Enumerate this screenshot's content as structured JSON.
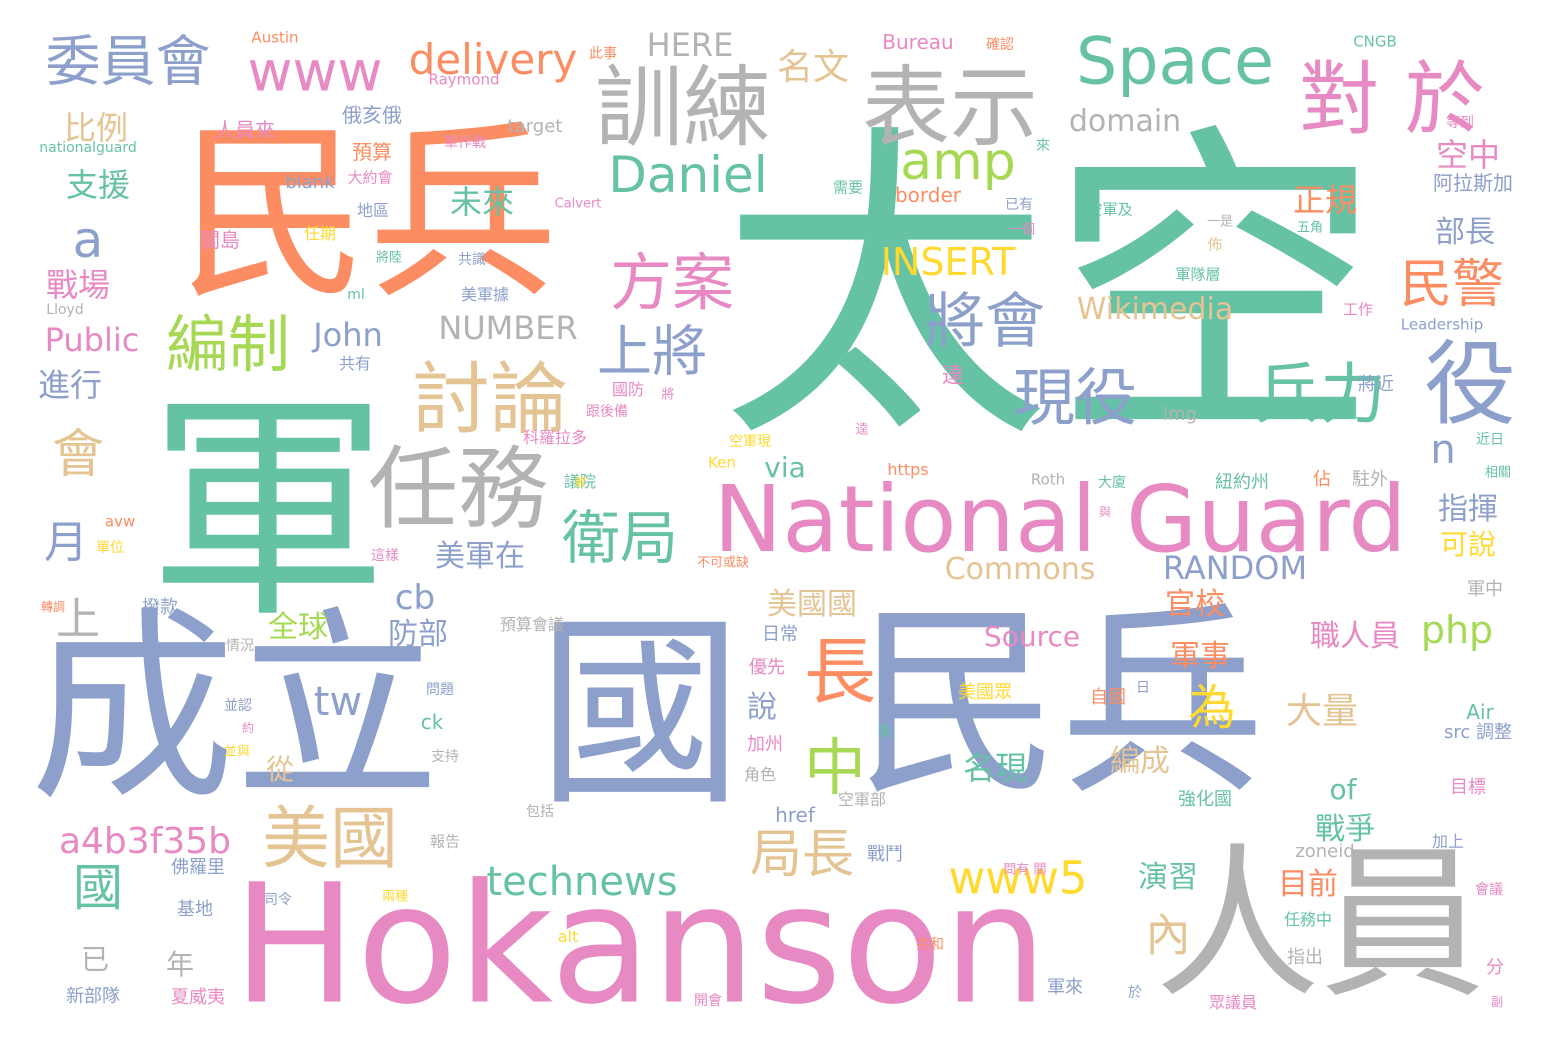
{
  "palette": {
    "teal": "#66c2a5",
    "orange": "#fc8d62",
    "blue": "#8da0cb",
    "pink": "#e78ac3",
    "green": "#a6d854",
    "yellow": "#ffd92f",
    "tan": "#e5c494",
    "gray": "#b3b3b3"
  },
  "words": [
    {
      "text": "太空",
      "color": "teal"
    },
    {
      "text": "民兵",
      "color": "orange"
    },
    {
      "text": "軍",
      "color": "teal"
    },
    {
      "text": "成立",
      "color": "blue"
    },
    {
      "text": "國",
      "color": "blue"
    },
    {
      "text": "民兵",
      "color": "blue"
    },
    {
      "text": "Hokanson",
      "color": "pink"
    },
    {
      "text": "人員",
      "color": "gray"
    },
    {
      "text": "National Guard",
      "color": "pink"
    },
    {
      "text": "訓練",
      "color": "gray"
    },
    {
      "text": "表示",
      "color": "gray"
    },
    {
      "text": "Space",
      "color": "teal"
    },
    {
      "text": "對 於",
      "color": "pink"
    },
    {
      "text": "委員會",
      "color": "blue"
    },
    {
      "text": "www",
      "color": "pink"
    },
    {
      "text": "delivery",
      "color": "orange"
    },
    {
      "text": "HERE",
      "color": "gray"
    },
    {
      "text": "名文",
      "color": "tan"
    },
    {
      "text": "domain",
      "color": "gray"
    },
    {
      "text": "amp",
      "color": "green"
    },
    {
      "text": "Daniel",
      "color": "teal"
    },
    {
      "text": "方案",
      "color": "pink"
    },
    {
      "text": "將會",
      "color": "blue"
    },
    {
      "text": "編制",
      "color": "green"
    },
    {
      "text": "討論",
      "color": "tan"
    },
    {
      "text": "上將",
      "color": "blue"
    },
    {
      "text": "現役",
      "color": "blue"
    },
    {
      "text": "兵力",
      "color": "teal"
    },
    {
      "text": "役",
      "color": "blue"
    },
    {
      "text": "民警",
      "color": "orange"
    },
    {
      "text": "任務",
      "color": "gray"
    },
    {
      "text": "衛局",
      "color": "teal"
    },
    {
      "text": "會",
      "color": "tan"
    },
    {
      "text": "a",
      "color": "blue"
    },
    {
      "text": "長",
      "color": "orange"
    },
    {
      "text": "中",
      "color": "green"
    },
    {
      "text": "為",
      "color": "yellow"
    },
    {
      "text": "INSERT",
      "color": "yellow"
    },
    {
      "text": "NUMBER",
      "color": "gray"
    },
    {
      "text": "John",
      "color": "blue"
    },
    {
      "text": "Public",
      "color": "pink"
    },
    {
      "text": "Wikimedia",
      "color": "tan"
    },
    {
      "text": "Commons",
      "color": "tan"
    },
    {
      "text": "RANDOM",
      "color": "blue"
    },
    {
      "text": "Source",
      "color": "pink"
    },
    {
      "text": "php",
      "color": "green"
    },
    {
      "text": "美國",
      "color": "tan"
    },
    {
      "text": "局長",
      "color": "tan"
    },
    {
      "text": "www5",
      "color": "yellow"
    },
    {
      "text": "technews",
      "color": "teal"
    },
    {
      "text": "a4b3f35b",
      "color": "pink"
    },
    {
      "text": "tw",
      "color": "blue"
    },
    {
      "text": "cb",
      "color": "blue"
    },
    {
      "text": "月",
      "color": "blue"
    },
    {
      "text": "上",
      "color": "gray"
    },
    {
      "text": "國",
      "color": "teal"
    },
    {
      "text": "內",
      "color": "tan"
    },
    {
      "text": "未來",
      "color": "teal"
    },
    {
      "text": "比例",
      "color": "tan"
    },
    {
      "text": "支援",
      "color": "teal"
    },
    {
      "text": "戰場",
      "color": "pink"
    },
    {
      "text": "進行",
      "color": "blue"
    },
    {
      "text": "全球",
      "color": "green"
    },
    {
      "text": "防部",
      "color": "blue"
    },
    {
      "text": "美國國",
      "color": "tan"
    },
    {
      "text": "名現",
      "color": "teal"
    },
    {
      "text": "編成",
      "color": "tan"
    },
    {
      "text": "演習",
      "color": "teal"
    },
    {
      "text": "戰爭",
      "color": "teal"
    },
    {
      "text": "目前",
      "color": "orange"
    },
    {
      "text": "大量",
      "color": "tan"
    },
    {
      "text": "官校",
      "color": "orange"
    },
    {
      "text": "軍事",
      "color": "orange"
    },
    {
      "text": "職人員",
      "color": "pink"
    },
    {
      "text": "指揮",
      "color": "blue"
    },
    {
      "text": "可說",
      "color": "yellow"
    },
    {
      "text": "n",
      "color": "blue"
    },
    {
      "text": "正規",
      "color": "orange"
    },
    {
      "text": "部長",
      "color": "blue"
    },
    {
      "text": "空中",
      "color": "pink"
    },
    {
      "text": "美軍在",
      "color": "blue"
    },
    {
      "text": "via",
      "color": "teal"
    },
    {
      "text": "說",
      "color": "blue"
    },
    {
      "text": "從",
      "color": "tan"
    },
    {
      "text": "年",
      "color": "gray"
    },
    {
      "text": "已",
      "color": "gray"
    },
    {
      "text": "of",
      "color": "teal"
    },
    {
      "text": "Bureau",
      "color": "pink"
    },
    {
      "text": "CNGB",
      "color": "teal"
    },
    {
      "text": "Austin",
      "color": "orange"
    },
    {
      "text": "Raymond",
      "color": "pink"
    },
    {
      "text": "target",
      "color": "gray"
    },
    {
      "text": "blank",
      "color": "blue"
    },
    {
      "text": "border",
      "color": "orange"
    },
    {
      "text": "img",
      "color": "gray"
    },
    {
      "text": "https",
      "color": "orange"
    },
    {
      "text": "Ken",
      "color": "yellow"
    },
    {
      "text": "Roth",
      "color": "gray"
    },
    {
      "text": "avw",
      "color": "orange"
    },
    {
      "text": "ck",
      "color": "teal"
    },
    {
      "text": "alt",
      "color": "yellow"
    },
    {
      "text": "href",
      "color": "blue"
    },
    {
      "text": "zoneid",
      "color": "gray"
    },
    {
      "text": "src 調整",
      "color": "blue"
    },
    {
      "text": "Air",
      "color": "teal"
    },
    {
      "text": "nationalguard",
      "color": "teal"
    },
    {
      "text": "Lloyd",
      "color": "gray"
    },
    {
      "text": "Leadership",
      "color": "blue"
    },
    {
      "text": "ml",
      "color": "teal"
    },
    {
      "text": "阿拉斯加",
      "color": "blue"
    },
    {
      "text": "人員來",
      "color": "pink"
    },
    {
      "text": "俄亥俄",
      "color": "blue"
    },
    {
      "text": "預算",
      "color": "orange"
    },
    {
      "text": "關島",
      "color": "pink"
    },
    {
      "text": "任期",
      "color": "yellow"
    },
    {
      "text": "地區",
      "color": "blue"
    },
    {
      "text": "美軍據",
      "color": "blue"
    },
    {
      "text": "國防",
      "color": "pink"
    },
    {
      "text": "科羅拉多",
      "color": "pink"
    },
    {
      "text": "議院",
      "color": "teal"
    },
    {
      "text": "紐約州",
      "color": "teal"
    },
    {
      "text": "大廈",
      "color": "teal"
    },
    {
      "text": "將近",
      "color": "blue"
    },
    {
      "text": "達",
      "color": "pink"
    },
    {
      "text": "撥款",
      "color": "blue"
    },
    {
      "text": "單位",
      "color": "yellow"
    },
    {
      "text": "轉調",
      "color": "orange"
    },
    {
      "text": "預算會議",
      "color": "gray"
    },
    {
      "text": "日常",
      "color": "blue"
    },
    {
      "text": "優先",
      "color": "pink"
    },
    {
      "text": "美國眾",
      "color": "yellow"
    },
    {
      "text": "自國",
      "color": "orange"
    },
    {
      "text": "加州",
      "color": "pink"
    },
    {
      "text": "角色",
      "color": "gray"
    },
    {
      "text": "強化國",
      "color": "teal"
    },
    {
      "text": "空軍部",
      "color": "gray"
    },
    {
      "text": "戰鬥",
      "color": "blue"
    },
    {
      "text": "佛羅里",
      "color": "blue"
    },
    {
      "text": "基地",
      "color": "blue"
    },
    {
      "text": "夏威夷",
      "color": "pink"
    },
    {
      "text": "新部隊",
      "color": "blue"
    },
    {
      "text": "軍來",
      "color": "blue"
    },
    {
      "text": "任務中",
      "color": "teal"
    },
    {
      "text": "指出",
      "color": "gray"
    },
    {
      "text": "眾議員",
      "color": "pink"
    },
    {
      "text": "目標",
      "color": "pink"
    },
    {
      "text": "加上",
      "color": "blue"
    },
    {
      "text": "分",
      "color": "pink"
    },
    {
      "text": "軍中",
      "color": "gray"
    },
    {
      "text": "近日",
      "color": "teal"
    },
    {
      "text": "駐外",
      "color": "gray"
    },
    {
      "text": "工作",
      "color": "pink"
    },
    {
      "text": "軍隊層",
      "color": "teal"
    },
    {
      "text": "空軍現",
      "color": "yellow"
    },
    {
      "text": "空軍及",
      "color": "teal"
    },
    {
      "text": "共識",
      "color": "blue"
    },
    {
      "text": "需要",
      "color": "teal"
    },
    {
      "text": "大約會",
      "color": "pink"
    },
    {
      "text": "軍作戰",
      "color": "pink"
    },
    {
      "text": "此事",
      "color": "orange"
    },
    {
      "text": "確認",
      "color": "orange"
    },
    {
      "text": "等到",
      "color": "pink"
    },
    {
      "text": "已有",
      "color": "blue"
    },
    {
      "text": "一個",
      "color": "pink"
    },
    {
      "text": "一是",
      "color": "gray"
    },
    {
      "text": "五角",
      "color": "teal"
    },
    {
      "text": "佈",
      "color": "tan"
    },
    {
      "text": "跟後備",
      "color": "pink"
    },
    {
      "text": "報告",
      "color": "gray"
    },
    {
      "text": "包括",
      "color": "gray"
    },
    {
      "text": "支持",
      "color": "gray"
    },
    {
      "text": "情況",
      "color": "gray"
    },
    {
      "text": "問題",
      "color": "blue"
    },
    {
      "text": "並認",
      "color": "blue"
    },
    {
      "text": "兩種",
      "color": "yellow"
    },
    {
      "text": "司令",
      "color": "blue"
    },
    {
      "text": "共和",
      "color": "orange"
    },
    {
      "text": "開會",
      "color": "pink"
    },
    {
      "text": "於",
      "color": "blue"
    },
    {
      "text": "問有 關",
      "color": "pink"
    },
    {
      "text": "共有",
      "color": "blue"
    },
    {
      "text": "不可或缺",
      "color": "orange"
    },
    {
      "text": "這樣",
      "color": "pink"
    },
    {
      "text": "與",
      "color": "pink"
    },
    {
      "text": "佔",
      "color": "orange"
    },
    {
      "text": "相關",
      "color": "teal"
    },
    {
      "text": "後",
      "color": "teal"
    },
    {
      "text": "約",
      "color": "pink"
    },
    {
      "text": "並與",
      "color": "yellow"
    },
    {
      "text": "日",
      "color": "blue"
    },
    {
      "text": "會議",
      "color": "pink"
    },
    {
      "text": "副",
      "color": "pink"
    },
    {
      "text": "Calvert",
      "color": "pink"
    },
    {
      "text": "將陸",
      "color": "teal"
    },
    {
      "text": "將",
      "color": "pink"
    },
    {
      "text": "被",
      "color": "yellow"
    },
    {
      "text": "逵",
      "color": "pink"
    },
    {
      "text": "來",
      "color": "teal"
    }
  ]
}
